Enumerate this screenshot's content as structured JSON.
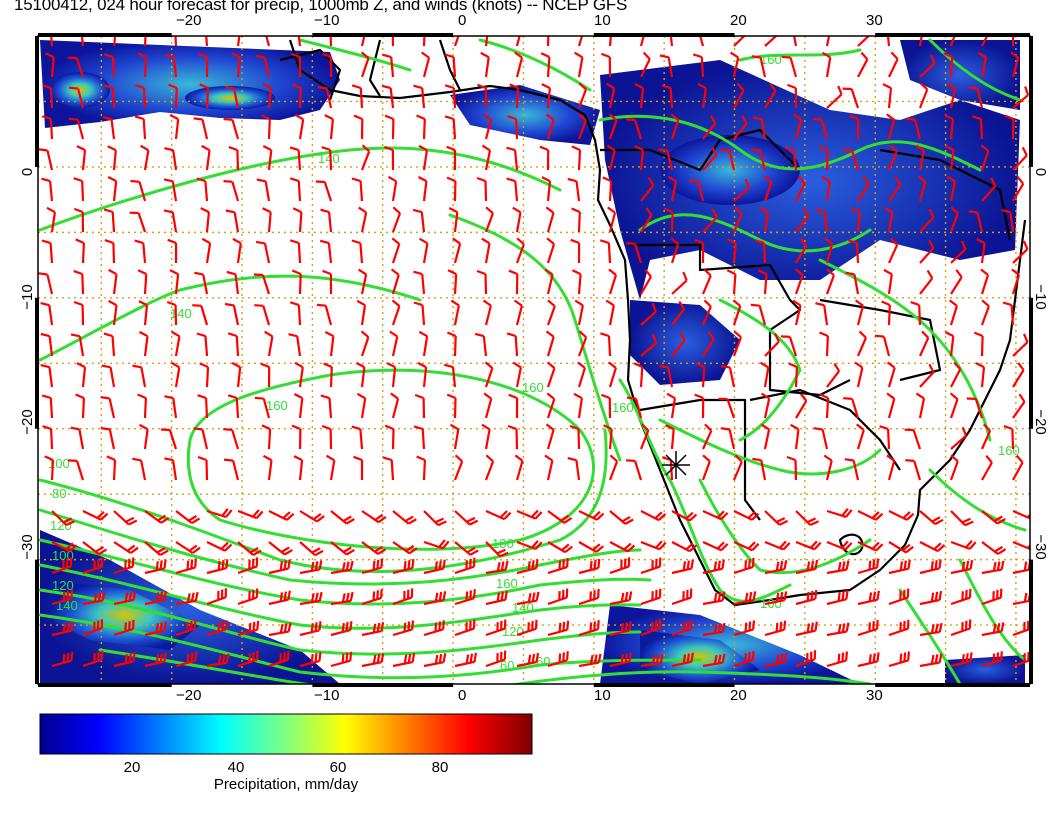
{
  "title": "15100412, 024 hour forecast for precip, 1000mb Z, and winds (knots) -- NCEP GFS",
  "axes": {
    "lon_ticks": [
      "−20",
      "−10",
      "0",
      "10",
      "20",
      "30"
    ],
    "lat_ticks": [
      "0",
      "−10",
      "−20",
      "−30"
    ],
    "lon_values": [
      -20,
      -10,
      0,
      10,
      20,
      30
    ],
    "lat_values": [
      0,
      -10,
      -20,
      -30
    ],
    "lon_range": [
      -29.5,
      41
    ],
    "lat_range": [
      -39.5,
      10
    ]
  },
  "contours": {
    "color": "#33dd33",
    "labels": [
      "140",
      "140",
      "160",
      "160",
      "160",
      "160",
      "180",
      "160",
      "140",
      "120",
      "100",
      "80",
      "60",
      "60",
      "160",
      "120",
      "100",
      "120",
      "140",
      "160"
    ]
  },
  "colorbar": {
    "label": "Precipitation, mm/day",
    "ticks": [
      "20",
      "40",
      "60",
      "80"
    ],
    "tick_values": [
      20,
      40,
      60,
      80
    ],
    "range": [
      0,
      100
    ]
  },
  "colors": {
    "wind_barbs": "#ff0000",
    "contours": "#33dd33",
    "precip_low": "#00008f",
    "precip_high": "#800000",
    "coastline": "#000000",
    "gridlines": "#d4a017"
  }
}
